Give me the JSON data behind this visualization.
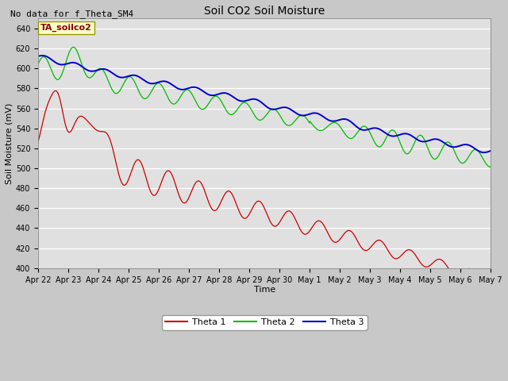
{
  "title": "Soil CO2 Soil Moisture",
  "subtitle": "No data for f_Theta_SM4",
  "xlabel": "Time",
  "ylabel": "Soil Moisture (mV)",
  "ylim": [
    400,
    650
  ],
  "yticks": [
    400,
    420,
    440,
    460,
    480,
    500,
    520,
    540,
    560,
    580,
    600,
    620,
    640
  ],
  "annotation_box": "TA_soilco2",
  "legend_labels": [
    "Theta 1",
    "Theta 2",
    "Theta 3"
  ],
  "line_colors": [
    "#cc0000",
    "#00bb00",
    "#0000cc"
  ],
  "fig_bg": "#c8c8c8",
  "plot_bg": "#e0e0e0",
  "grid_color": "#ffffff",
  "x_tick_labels": [
    "Apr 22",
    "Apr 23",
    "Apr 24",
    "Apr 25",
    "Apr 26",
    "Apr 27",
    "Apr 28",
    "Apr 29",
    "Apr 30",
    "May 1",
    "May 2",
    "May 3",
    "May 4",
    "May 5",
    "May 6",
    "May 7"
  ],
  "subtitle_fontsize": 8,
  "title_fontsize": 10,
  "tick_fontsize": 7,
  "label_fontsize": 8,
  "legend_fontsize": 8,
  "annotation_fontsize": 8
}
